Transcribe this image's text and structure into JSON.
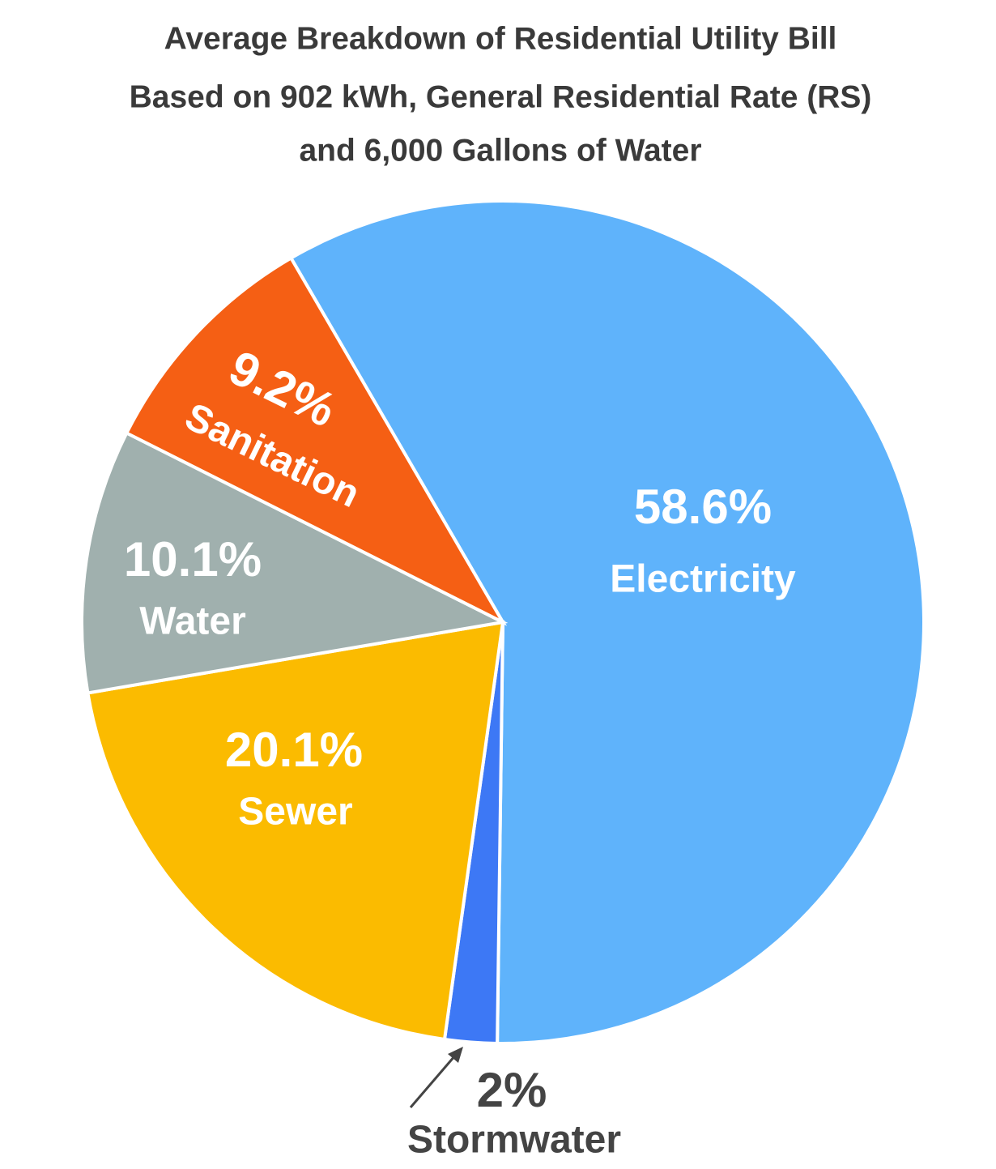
{
  "chart_data": {
    "type": "pie",
    "title": [
      "Average Breakdown of Residential Utility Bill",
      "Based on 902 kWh, General Residential Rate (RS)",
      "and 6,000 Gallons of Water"
    ],
    "categories": [
      "Electricity",
      "Stormwater",
      "Sewer",
      "Water",
      "Sanitation"
    ],
    "values": [
      58.6,
      2,
      20.1,
      10.1,
      9.2
    ],
    "value_labels": [
      "58.6%",
      "2%",
      "20.1%",
      "10.1%",
      "9.2%"
    ],
    "colors": [
      "#5fb3fb",
      "#3d78f5",
      "#fbbb00",
      "#a0b0ae",
      "#f55f14"
    ]
  }
}
